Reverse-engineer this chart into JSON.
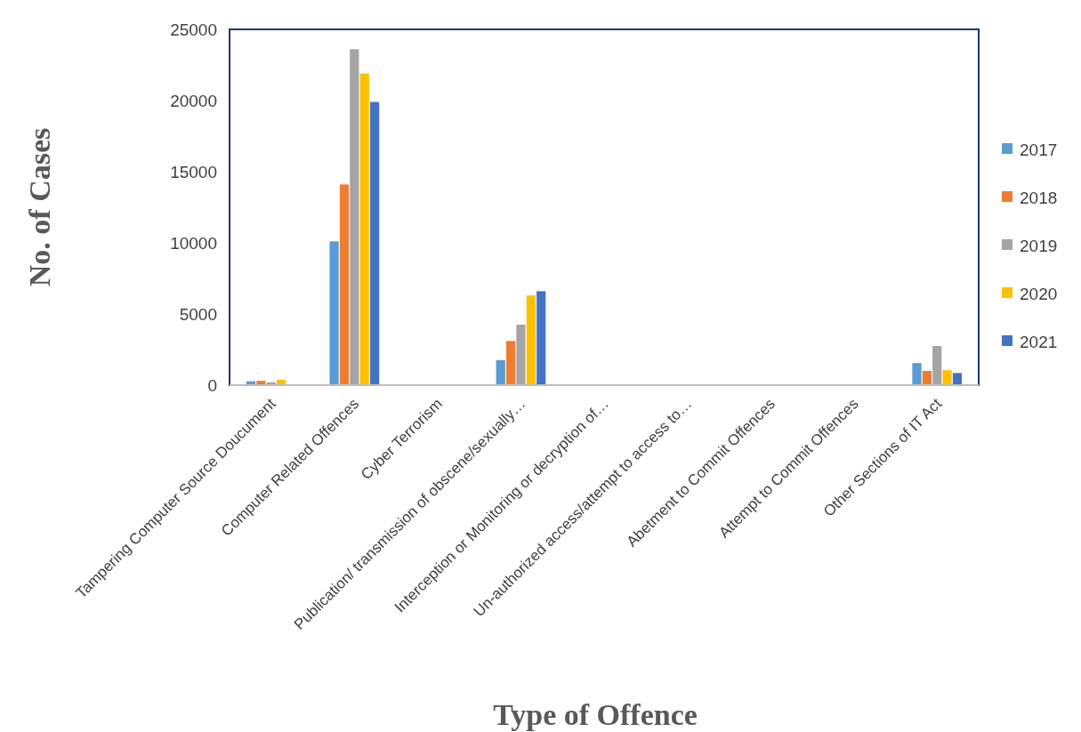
{
  "chart_data": {
    "type": "bar",
    "xlabel": "Type of Offence",
    "ylabel": "No. of Cases",
    "categories": [
      "Tampering Computer Source Doucument",
      "Computer Related Offences",
      "Cyber Terrorism",
      "Publication/ transmission of obscene/sexually…",
      "Interception or Monitoring or decryption of…",
      "Un-authorized access/attempt to access to…",
      "Abetment to Commit Offences",
      "Attempt to Commit Offences",
      "Other Sections of IT Act"
    ],
    "series": [
      {
        "name": "2017",
        "color": "#5b9bd5",
        "values": [
          270,
          10100,
          0,
          1750,
          0,
          0,
          0,
          0,
          1550
        ]
      },
      {
        "name": "2018",
        "color": "#ed7d31",
        "values": [
          300,
          14100,
          0,
          3100,
          0,
          0,
          0,
          0,
          1000
        ]
      },
      {
        "name": "2019",
        "color": "#a5a5a5",
        "values": [
          200,
          23600,
          0,
          4250,
          0,
          0,
          0,
          0,
          2750
        ]
      },
      {
        "name": "2020",
        "color": "#ffc000",
        "values": [
          380,
          21900,
          0,
          6300,
          0,
          0,
          0,
          0,
          1050
        ]
      },
      {
        "name": "2021",
        "color": "#4472c4",
        "values": [
          0,
          19900,
          0,
          6600,
          0,
          0,
          0,
          0,
          850
        ]
      }
    ],
    "ylim": [
      0,
      25000
    ],
    "yticks": [
      0,
      5000,
      10000,
      15000,
      20000,
      25000
    ],
    "grid": false,
    "legend": "right"
  }
}
